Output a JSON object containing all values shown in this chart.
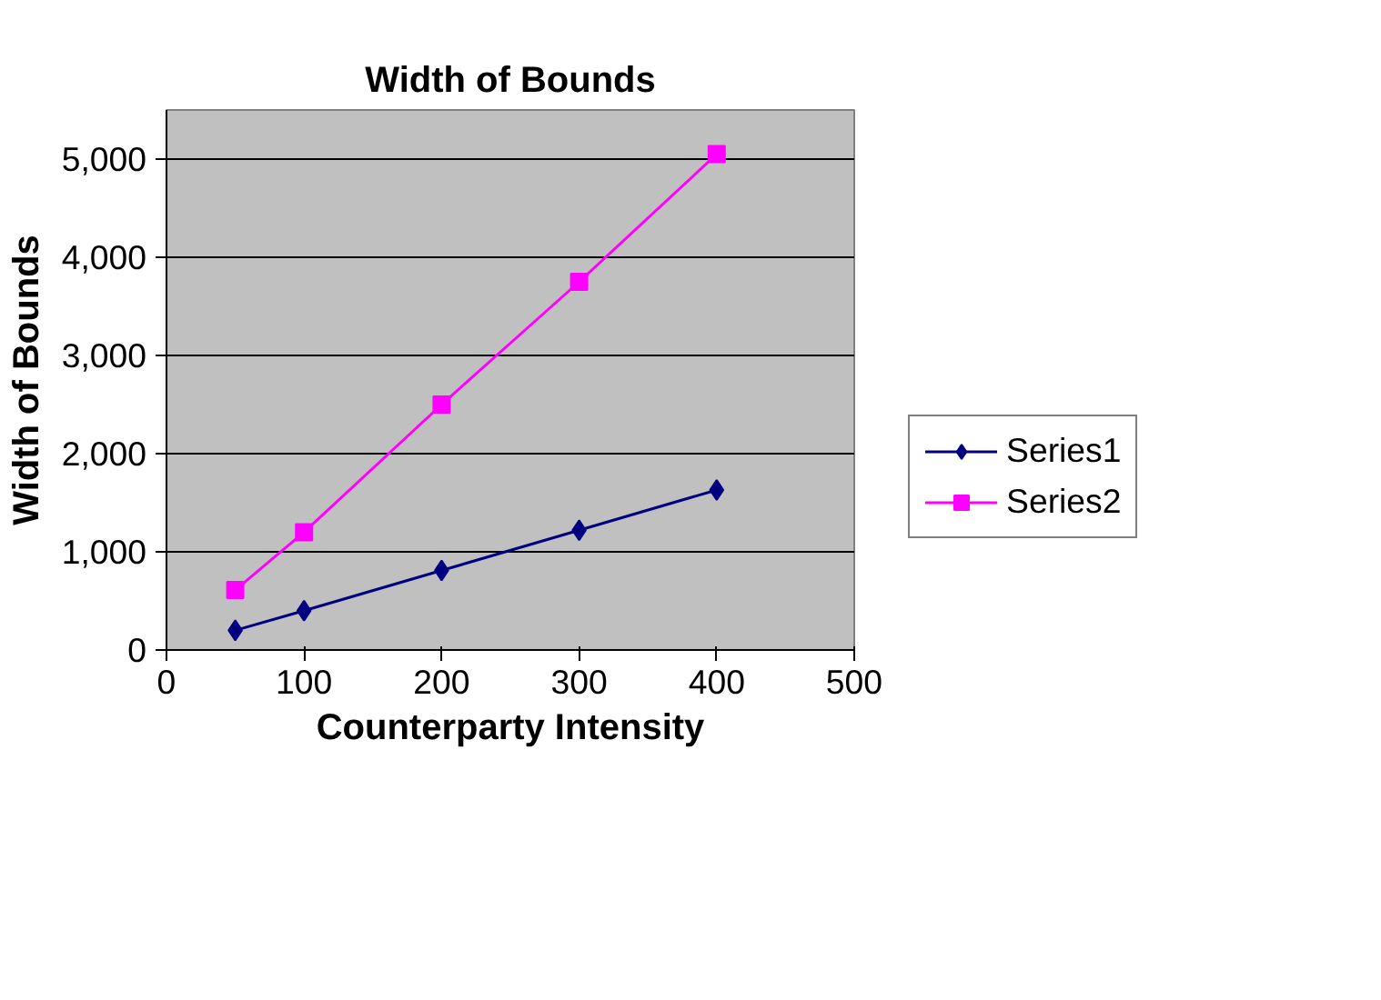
{
  "chart_data": {
    "type": "line",
    "title": "Width of Bounds",
    "xlabel": "Counterparty Intensity",
    "ylabel": "Width of Bounds",
    "x": [
      50,
      100,
      200,
      300,
      400
    ],
    "series": [
      {
        "name": "Series1",
        "color": "#000080",
        "marker": "diamond",
        "values": [
          200,
          400,
          810,
          1220,
          1630
        ]
      },
      {
        "name": "Series2",
        "color": "#ff00ff",
        "marker": "square",
        "values": [
          610,
          1200,
          2500,
          3750,
          5050
        ]
      }
    ],
    "xlim": [
      0,
      500
    ],
    "xticks": [
      0,
      100,
      200,
      300,
      400,
      500
    ],
    "ylim": [
      0,
      5500
    ],
    "yticks": [
      {
        "value": 0,
        "label": "0"
      },
      {
        "value": 1000,
        "label": "1,000"
      },
      {
        "value": 2000,
        "label": "2,000"
      },
      {
        "value": 3000,
        "label": "3,000"
      },
      {
        "value": 4000,
        "label": "4,000"
      },
      {
        "value": 5000,
        "label": "5,000"
      }
    ],
    "grid": "y",
    "legend": "right",
    "line_style": "solid"
  }
}
